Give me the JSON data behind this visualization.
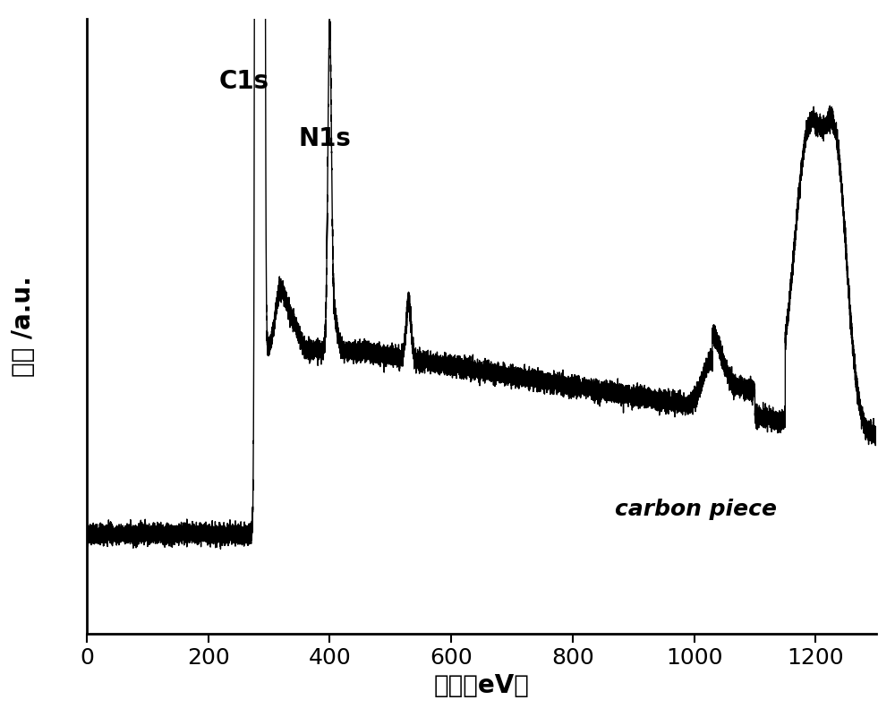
{
  "xlabel": "键能（eV）",
  "ylabel": "強度 /a.u.",
  "xlim": [
    0,
    1300
  ],
  "line_color": "#000000",
  "background_color": "#ffffff",
  "label_C1s": "C1s",
  "label_N1s": "N1s",
  "label_legend": "carbon piece",
  "xlabel_fontsize": 20,
  "ylabel_fontsize": 20,
  "annotation_fontsize": 20,
  "legend_fontsize": 18,
  "tick_fontsize": 18
}
